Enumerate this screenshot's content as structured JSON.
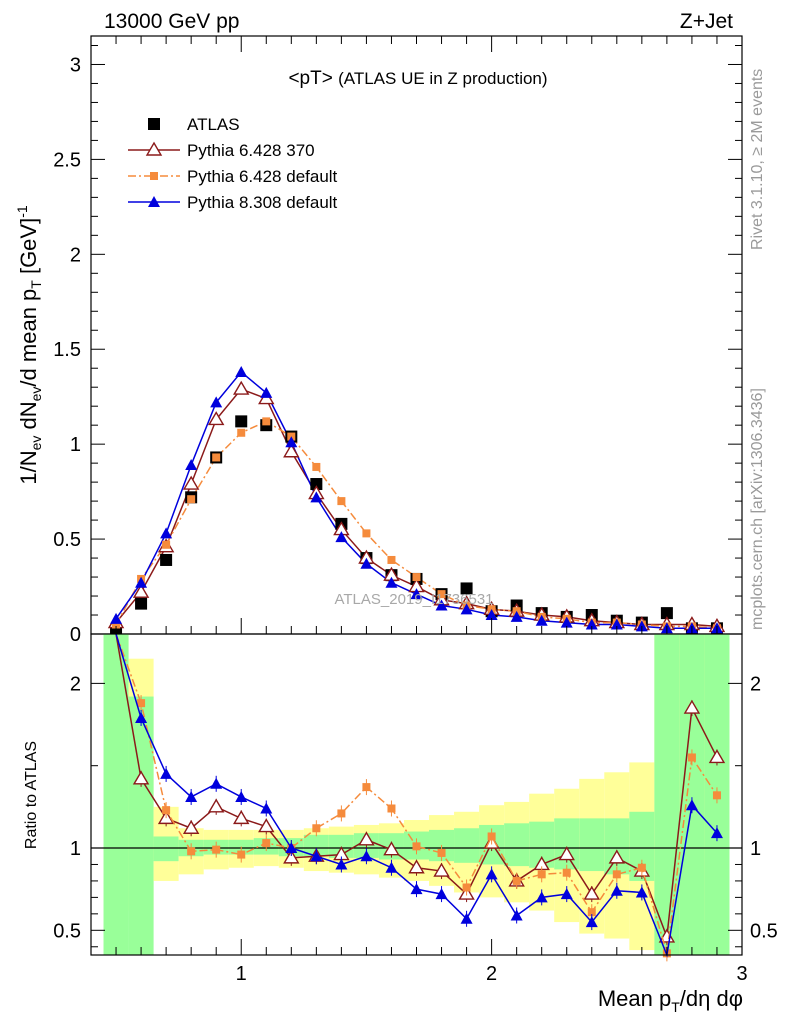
{
  "header": {
    "left": "13000 GeV pp",
    "right": "Z+Jet"
  },
  "side": {
    "top": "Rivet 3.1.10, ≥ 2M events",
    "bottom": "mcplots.cern.ch [arXiv:1306.3436]"
  },
  "watermark": "ATLAS_2019_I1736531",
  "plot_title": {
    "main": "<pT>",
    "sub": "(ATLAS UE in Z production)"
  },
  "labels": {
    "ylabel_top": "1/N_ev dN_ev/d mean p_T [GeV]^-1",
    "ylabel_bottom": "Ratio to ATLAS",
    "xlabel": "Mean p_T/dη dφ"
  },
  "legend": [
    {
      "name": "ATLAS",
      "color": "#000000",
      "marker": "square"
    },
    {
      "name": "Pythia 6.428 370",
      "color": "#8b1a1a",
      "marker": "open-triangle"
    },
    {
      "name": "Pythia 6.428 default",
      "color": "#f58b3c",
      "marker": "small-square"
    },
    {
      "name": "Pythia 8.308 default",
      "color": "#0000dd",
      "marker": "triangle"
    }
  ],
  "chart_data": [
    {
      "type": "scatter",
      "panel": "main",
      "x": [
        0.5,
        0.6,
        0.7,
        0.8,
        0.9,
        1.0,
        1.1,
        1.2,
        1.3,
        1.4,
        1.5,
        1.6,
        1.7,
        1.8,
        1.9,
        2.0,
        2.1,
        2.2,
        2.3,
        2.4,
        2.5,
        2.6,
        2.7,
        2.8,
        2.9
      ],
      "series": [
        {
          "name": "ATLAS",
          "values": [
            0.02,
            0.16,
            0.39,
            0.72,
            0.93,
            1.12,
            1.1,
            1.04,
            0.79,
            0.58,
            0.4,
            0.31,
            0.29,
            0.21,
            0.24,
            0.12,
            0.15,
            0.11,
            0.09,
            0.1,
            0.07,
            0.06,
            0.11,
            0.03,
            0.03
          ]
        },
        {
          "name": "Pythia 6.428 370",
          "values": [
            0.06,
            0.22,
            0.46,
            0.79,
            1.13,
            1.29,
            1.24,
            0.96,
            0.74,
            0.55,
            0.4,
            0.31,
            0.25,
            0.18,
            0.16,
            0.13,
            0.12,
            0.1,
            0.09,
            0.07,
            0.06,
            0.05,
            0.05,
            0.05,
            0.04
          ]
        },
        {
          "name": "Pythia 6.428 default",
          "values": [
            0.05,
            0.29,
            0.47,
            0.71,
            0.93,
            1.06,
            1.12,
            1.04,
            0.88,
            0.7,
            0.53,
            0.39,
            0.3,
            0.21,
            0.15,
            0.13,
            0.12,
            0.09,
            0.08,
            0.06,
            0.06,
            0.05,
            0.04,
            0.04,
            0.03
          ]
        },
        {
          "name": "Pythia 8.308 default",
          "values": [
            0.08,
            0.27,
            0.53,
            0.89,
            1.22,
            1.38,
            1.27,
            1.01,
            0.72,
            0.51,
            0.37,
            0.27,
            0.21,
            0.15,
            0.13,
            0.1,
            0.09,
            0.07,
            0.06,
            0.05,
            0.05,
            0.04,
            0.03,
            0.03,
            0.03
          ]
        }
      ],
      "xlim": [
        0.4,
        3.0
      ],
      "ylim": [
        0,
        3.15
      ],
      "yticks": [
        0,
        0.5,
        1,
        1.5,
        2,
        2.5,
        3
      ]
    },
    {
      "type": "line",
      "panel": "ratio",
      "x": [
        0.5,
        0.6,
        0.7,
        0.8,
        0.9,
        1.0,
        1.1,
        1.2,
        1.3,
        1.4,
        1.5,
        1.6,
        1.7,
        1.8,
        1.9,
        2.0,
        2.1,
        2.2,
        2.3,
        2.4,
        2.5,
        2.6,
        2.7,
        2.8,
        2.9
      ],
      "series": [
        {
          "name": "Pythia 6.428 370",
          "values": [
            3.0,
            1.42,
            1.18,
            1.12,
            1.25,
            1.18,
            1.13,
            0.94,
            0.95,
            0.96,
            1.05,
            0.99,
            0.88,
            0.86,
            0.72,
            1.03,
            0.8,
            0.9,
            0.96,
            0.72,
            0.94,
            0.86,
            0.46,
            1.85,
            1.55
          ]
        },
        {
          "name": "Pythia 6.428 default",
          "values": [
            3.0,
            1.88,
            1.23,
            0.98,
            0.99,
            0.96,
            1.03,
            1.0,
            1.12,
            1.21,
            1.37,
            1.24,
            1.01,
            0.97,
            0.76,
            1.07,
            0.8,
            0.84,
            0.85,
            0.61,
            0.84,
            0.88,
            0.36,
            1.55,
            1.32
          ]
        },
        {
          "name": "Pythia 8.308 default",
          "values": [
            3.0,
            1.79,
            1.45,
            1.31,
            1.39,
            1.31,
            1.24,
            1.0,
            0.95,
            0.9,
            0.95,
            0.88,
            0.75,
            0.72,
            0.57,
            0.84,
            0.59,
            0.7,
            0.72,
            0.55,
            0.74,
            0.73,
            0.3,
            1.26,
            1.09
          ]
        }
      ],
      "bands": {
        "green": [
          [
            0.35,
            3.0
          ],
          [
            0.35,
            1.92
          ],
          [
            0.92,
            1.07
          ],
          [
            0.95,
            1.05
          ],
          [
            0.96,
            1.05
          ],
          [
            0.96,
            1.05
          ],
          [
            0.96,
            1.06
          ],
          [
            0.95,
            1.06
          ],
          [
            0.95,
            1.08
          ],
          [
            0.94,
            1.08
          ],
          [
            0.94,
            1.09
          ],
          [
            0.93,
            1.09
          ],
          [
            0.93,
            1.1
          ],
          [
            0.92,
            1.11
          ],
          [
            0.91,
            1.12
          ],
          [
            0.9,
            1.14
          ],
          [
            0.89,
            1.15
          ],
          [
            0.88,
            1.16
          ],
          [
            0.87,
            1.18
          ],
          [
            0.86,
            1.18
          ],
          [
            0.84,
            1.18
          ],
          [
            0.8,
            1.22
          ],
          [
            0.3,
            3.0
          ],
          [
            0.3,
            3.0
          ],
          [
            0.3,
            3.0
          ]
        ],
        "yellow": [
          [
            0.35,
            3.0
          ],
          [
            0.62,
            2.15
          ],
          [
            0.8,
            1.25
          ],
          [
            0.84,
            1.12
          ],
          [
            0.87,
            1.11
          ],
          [
            0.88,
            1.11
          ],
          [
            0.89,
            1.11
          ],
          [
            0.88,
            1.11
          ],
          [
            0.86,
            1.12
          ],
          [
            0.85,
            1.13
          ],
          [
            0.84,
            1.14
          ],
          [
            0.82,
            1.15
          ],
          [
            0.8,
            1.17
          ],
          [
            0.77,
            1.2
          ],
          [
            0.73,
            1.22
          ],
          [
            0.7,
            1.26
          ],
          [
            0.67,
            1.28
          ],
          [
            0.62,
            1.33
          ],
          [
            0.55,
            1.36
          ],
          [
            0.48,
            1.42
          ],
          [
            0.45,
            1.46
          ],
          [
            0.38,
            1.52
          ],
          [
            0.3,
            3.0
          ],
          [
            0.3,
            3.0
          ],
          [
            0.3,
            3.0
          ]
        ]
      },
      "reference_line": 1,
      "xlim": [
        0.4,
        3.0
      ],
      "ylim": [
        0.35,
        2.3
      ],
      "yticks": [
        0.5,
        1,
        2
      ],
      "xticks": [
        1,
        2,
        3
      ]
    }
  ]
}
